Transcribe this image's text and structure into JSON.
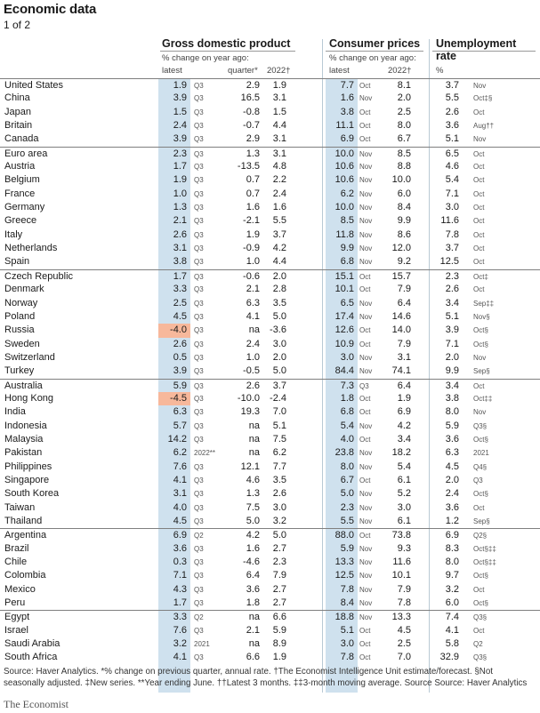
{
  "title": "Economic data",
  "page_indicator": "1 of 2",
  "headers": {
    "gdp": {
      "title": "Gross domestic product",
      "sub": "% change on year ago:",
      "latest": "latest",
      "quarter": "quarter*",
      "year": "2022†"
    },
    "cpi": {
      "title": "Consumer prices",
      "sub": "% change on year ago:",
      "latest": "latest",
      "year": "2022†"
    },
    "unemp": {
      "title": "Unemployment rate",
      "sub": "%"
    }
  },
  "rows": [
    {
      "country": "United States",
      "gdp": "1.9",
      "gdp_p": "Q3",
      "gdp_q": "2.9",
      "gdp_y": "1.9",
      "cp": "7.7",
      "cp_p": "Oct",
      "cp_y": "8.1",
      "un": "3.7",
      "un_p": "Nov",
      "group_start": true
    },
    {
      "country": "China",
      "gdp": "3.9",
      "gdp_p": "Q3",
      "gdp_q": "16.5",
      "gdp_y": "3.1",
      "cp": "1.6",
      "cp_p": "Nov",
      "cp_y": "2.0",
      "un": "5.5",
      "un_p": "Oct‡§"
    },
    {
      "country": "Japan",
      "gdp": "1.5",
      "gdp_p": "Q3",
      "gdp_q": "-0.8",
      "gdp_y": "1.5",
      "cp": "3.8",
      "cp_p": "Oct",
      "cp_y": "2.5",
      "un": "2.6",
      "un_p": "Oct"
    },
    {
      "country": "Britain",
      "gdp": "2.4",
      "gdp_p": "Q3",
      "gdp_q": "-0.7",
      "gdp_y": "4.4",
      "cp": "11.1",
      "cp_p": "Oct",
      "cp_y": "8.0",
      "un": "3.6",
      "un_p": "Aug††"
    },
    {
      "country": "Canada",
      "gdp": "3.9",
      "gdp_p": "Q3",
      "gdp_q": "2.9",
      "gdp_y": "3.1",
      "cp": "6.9",
      "cp_p": "Oct",
      "cp_y": "6.7",
      "un": "5.1",
      "un_p": "Nov"
    },
    {
      "country": "Euro area",
      "gdp": "2.3",
      "gdp_p": "Q3",
      "gdp_q": "1.3",
      "gdp_y": "3.1",
      "cp": "10.0",
      "cp_p": "Nov",
      "cp_y": "8.5",
      "un": "6.5",
      "un_p": "Oct",
      "group_start": true
    },
    {
      "country": "Austria",
      "gdp": "1.7",
      "gdp_p": "Q3",
      "gdp_q": "-13.5",
      "gdp_y": "4.8",
      "cp": "10.6",
      "cp_p": "Nov",
      "cp_y": "8.8",
      "un": "4.6",
      "un_p": "Oct"
    },
    {
      "country": "Belgium",
      "gdp": "1.9",
      "gdp_p": "Q3",
      "gdp_q": "0.7",
      "gdp_y": "2.2",
      "cp": "10.6",
      "cp_p": "Nov",
      "cp_y": "10.0",
      "un": "5.4",
      "un_p": "Oct"
    },
    {
      "country": "France",
      "gdp": "1.0",
      "gdp_p": "Q3",
      "gdp_q": "0.7",
      "gdp_y": "2.4",
      "cp": "6.2",
      "cp_p": "Nov",
      "cp_y": "6.0",
      "un": "7.1",
      "un_p": "Oct"
    },
    {
      "country": "Germany",
      "gdp": "1.3",
      "gdp_p": "Q3",
      "gdp_q": "1.6",
      "gdp_y": "1.6",
      "cp": "10.0",
      "cp_p": "Nov",
      "cp_y": "8.4",
      "un": "3.0",
      "un_p": "Oct"
    },
    {
      "country": "Greece",
      "gdp": "2.1",
      "gdp_p": "Q3",
      "gdp_q": "-2.1",
      "gdp_y": "5.5",
      "cp": "8.5",
      "cp_p": "Nov",
      "cp_y": "9.9",
      "un": "11.6",
      "un_p": "Oct"
    },
    {
      "country": "Italy",
      "gdp": "2.6",
      "gdp_p": "Q3",
      "gdp_q": "1.9",
      "gdp_y": "3.7",
      "cp": "11.8",
      "cp_p": "Nov",
      "cp_y": "8.6",
      "un": "7.8",
      "un_p": "Oct"
    },
    {
      "country": "Netherlands",
      "gdp": "3.1",
      "gdp_p": "Q3",
      "gdp_q": "-0.9",
      "gdp_y": "4.2",
      "cp": "9.9",
      "cp_p": "Nov",
      "cp_y": "12.0",
      "un": "3.7",
      "un_p": "Oct"
    },
    {
      "country": "Spain",
      "gdp": "3.8",
      "gdp_p": "Q3",
      "gdp_q": "1.0",
      "gdp_y": "4.4",
      "cp": "6.8",
      "cp_p": "Nov",
      "cp_y": "9.2",
      "un": "12.5",
      "un_p": "Oct"
    },
    {
      "country": "Czech Republic",
      "gdp": "1.7",
      "gdp_p": "Q3",
      "gdp_q": "-0.6",
      "gdp_y": "2.0",
      "cp": "15.1",
      "cp_p": "Oct",
      "cp_y": "15.7",
      "un": "2.3",
      "un_p": "Oct‡",
      "group_start": true
    },
    {
      "country": "Denmark",
      "gdp": "3.3",
      "gdp_p": "Q3",
      "gdp_q": "2.1",
      "gdp_y": "2.8",
      "cp": "10.1",
      "cp_p": "Oct",
      "cp_y": "7.9",
      "un": "2.6",
      "un_p": "Oct"
    },
    {
      "country": "Norway",
      "gdp": "2.5",
      "gdp_p": "Q3",
      "gdp_q": "6.3",
      "gdp_y": "3.5",
      "cp": "6.5",
      "cp_p": "Nov",
      "cp_y": "6.4",
      "un": "3.4",
      "un_p": "Sep‡‡"
    },
    {
      "country": "Poland",
      "gdp": "4.5",
      "gdp_p": "Q3",
      "gdp_q": "4.1",
      "gdp_y": "5.0",
      "cp": "17.4",
      "cp_p": "Nov",
      "cp_y": "14.6",
      "un": "5.1",
      "un_p": "Nov§"
    },
    {
      "country": "Russia",
      "gdp": "-4.0",
      "gdp_p": "Q3",
      "gdp_q": "na",
      "gdp_y": "-3.6",
      "cp": "12.6",
      "cp_p": "Oct",
      "cp_y": "14.0",
      "un": "3.9",
      "un_p": "Oct§",
      "neg": true
    },
    {
      "country": "Sweden",
      "gdp": "2.6",
      "gdp_p": "Q3",
      "gdp_q": "2.4",
      "gdp_y": "3.0",
      "cp": "10.9",
      "cp_p": "Oct",
      "cp_y": "7.9",
      "un": "7.1",
      "un_p": "Oct§"
    },
    {
      "country": "Switzerland",
      "gdp": "0.5",
      "gdp_p": "Q3",
      "gdp_q": "1.0",
      "gdp_y": "2.0",
      "cp": "3.0",
      "cp_p": "Nov",
      "cp_y": "3.1",
      "un": "2.0",
      "un_p": "Nov"
    },
    {
      "country": "Turkey",
      "gdp": "3.9",
      "gdp_p": "Q3",
      "gdp_q": "-0.5",
      "gdp_y": "5.0",
      "cp": "84.4",
      "cp_p": "Nov",
      "cp_y": "74.1",
      "un": "9.9",
      "un_p": "Sep§"
    },
    {
      "country": "Australia",
      "gdp": "5.9",
      "gdp_p": "Q3",
      "gdp_q": "2.6",
      "gdp_y": "3.7",
      "cp": "7.3",
      "cp_p": "Q3",
      "cp_y": "6.4",
      "un": "3.4",
      "un_p": "Oct",
      "group_start": true
    },
    {
      "country": "Hong Kong",
      "gdp": "-4.5",
      "gdp_p": "Q3",
      "gdp_q": "-10.0",
      "gdp_y": "-2.4",
      "cp": "1.8",
      "cp_p": "Oct",
      "cp_y": "1.9",
      "un": "3.8",
      "un_p": "Oct‡‡",
      "neg": true
    },
    {
      "country": "India",
      "gdp": "6.3",
      "gdp_p": "Q3",
      "gdp_q": "19.3",
      "gdp_y": "7.0",
      "cp": "6.8",
      "cp_p": "Oct",
      "cp_y": "6.9",
      "un": "8.0",
      "un_p": "Nov"
    },
    {
      "country": "Indonesia",
      "gdp": "5.7",
      "gdp_p": "Q3",
      "gdp_q": "na",
      "gdp_y": "5.1",
      "cp": "5.4",
      "cp_p": "Nov",
      "cp_y": "4.2",
      "un": "5.9",
      "un_p": "Q3§"
    },
    {
      "country": "Malaysia",
      "gdp": "14.2",
      "gdp_p": "Q3",
      "gdp_q": "na",
      "gdp_y": "7.5",
      "cp": "4.0",
      "cp_p": "Oct",
      "cp_y": "3.4",
      "un": "3.6",
      "un_p": "Oct§"
    },
    {
      "country": "Pakistan",
      "gdp": "6.2",
      "gdp_p": "2022**",
      "gdp_q": "na",
      "gdp_y": "6.2",
      "cp": "23.8",
      "cp_p": "Nov",
      "cp_y": "18.2",
      "un": "6.3",
      "un_p": "2021"
    },
    {
      "country": "Philippines",
      "gdp": "7.6",
      "gdp_p": "Q3",
      "gdp_q": "12.1",
      "gdp_y": "7.7",
      "cp": "8.0",
      "cp_p": "Nov",
      "cp_y": "5.4",
      "un": "4.5",
      "un_p": "Q4§"
    },
    {
      "country": "Singapore",
      "gdp": "4.1",
      "gdp_p": "Q3",
      "gdp_q": "4.6",
      "gdp_y": "3.5",
      "cp": "6.7",
      "cp_p": "Oct",
      "cp_y": "6.1",
      "un": "2.0",
      "un_p": "Q3"
    },
    {
      "country": "South Korea",
      "gdp": "3.1",
      "gdp_p": "Q3",
      "gdp_q": "1.3",
      "gdp_y": "2.6",
      "cp": "5.0",
      "cp_p": "Nov",
      "cp_y": "5.2",
      "un": "2.4",
      "un_p": "Oct§"
    },
    {
      "country": "Taiwan",
      "gdp": "4.0",
      "gdp_p": "Q3",
      "gdp_q": "7.5",
      "gdp_y": "3.0",
      "cp": "2.3",
      "cp_p": "Nov",
      "cp_y": "3.0",
      "un": "3.6",
      "un_p": "Oct"
    },
    {
      "country": "Thailand",
      "gdp": "4.5",
      "gdp_p": "Q3",
      "gdp_q": "5.0",
      "gdp_y": "3.2",
      "cp": "5.5",
      "cp_p": "Nov",
      "cp_y": "6.1",
      "un": "1.2",
      "un_p": "Sep§"
    },
    {
      "country": "Argentina",
      "gdp": "6.9",
      "gdp_p": "Q2",
      "gdp_q": "4.2",
      "gdp_y": "5.0",
      "cp": "88.0",
      "cp_p": "Oct",
      "cp_y": "73.8",
      "un": "6.9",
      "un_p": "Q2§",
      "group_start": true
    },
    {
      "country": "Brazil",
      "gdp": "3.6",
      "gdp_p": "Q3",
      "gdp_q": "1.6",
      "gdp_y": "2.7",
      "cp": "5.9",
      "cp_p": "Nov",
      "cp_y": "9.3",
      "un": "8.3",
      "un_p": "Oct§‡‡"
    },
    {
      "country": "Chile",
      "gdp": "0.3",
      "gdp_p": "Q3",
      "gdp_q": "-4.6",
      "gdp_y": "2.3",
      "cp": "13.3",
      "cp_p": "Nov",
      "cp_y": "11.6",
      "un": "8.0",
      "un_p": "Oct§‡‡"
    },
    {
      "country": "Colombia",
      "gdp": "7.1",
      "gdp_p": "Q3",
      "gdp_q": "6.4",
      "gdp_y": "7.9",
      "cp": "12.5",
      "cp_p": "Nov",
      "cp_y": "10.1",
      "un": "9.7",
      "un_p": "Oct§"
    },
    {
      "country": "Mexico",
      "gdp": "4.3",
      "gdp_p": "Q3",
      "gdp_q": "3.6",
      "gdp_y": "2.7",
      "cp": "7.8",
      "cp_p": "Nov",
      "cp_y": "7.9",
      "un": "3.2",
      "un_p": "Oct"
    },
    {
      "country": "Peru",
      "gdp": "1.7",
      "gdp_p": "Q3",
      "gdp_q": "1.8",
      "gdp_y": "2.7",
      "cp": "8.4",
      "cp_p": "Nov",
      "cp_y": "7.8",
      "un": "6.0",
      "un_p": "Oct§"
    },
    {
      "country": "Egypt",
      "gdp": "3.3",
      "gdp_p": "Q2",
      "gdp_q": "na",
      "gdp_y": "6.6",
      "cp": "18.8",
      "cp_p": "Nov",
      "cp_y": "13.3",
      "un": "7.4",
      "un_p": "Q3§",
      "group_start": true
    },
    {
      "country": "Israel",
      "gdp": "7.6",
      "gdp_p": "Q3",
      "gdp_q": "2.1",
      "gdp_y": "5.9",
      "cp": "5.1",
      "cp_p": "Oct",
      "cp_y": "4.5",
      "un": "4.1",
      "un_p": "Oct"
    },
    {
      "country": "Saudi Arabia",
      "gdp": "3.2",
      "gdp_p": "2021",
      "gdp_q": "na",
      "gdp_y": "8.9",
      "cp": "3.0",
      "cp_p": "Oct",
      "cp_y": "2.5",
      "un": "5.8",
      "un_p": "Q2"
    },
    {
      "country": "South Africa",
      "gdp": "4.1",
      "gdp_p": "Q3",
      "gdp_q": "6.6",
      "gdp_y": "1.9",
      "cp": "7.8",
      "cp_p": "Oct",
      "cp_y": "7.0",
      "un": "32.9",
      "un_p": "Q3§"
    }
  ],
  "source": "Source: Haver Analytics. *% change on previous quarter, annual rate. †The Economist Intelligence Unit estimate/forecast. §Not seasonally adjusted. ‡New series. **Year ending June. ††Latest 3 months. ‡‡3-month moving average. Source Source: Haver Analytics",
  "brand": "The Economist",
  "colors": {
    "latest_shade": "#cfe1ee",
    "negative_shade": "#f7b89b"
  }
}
